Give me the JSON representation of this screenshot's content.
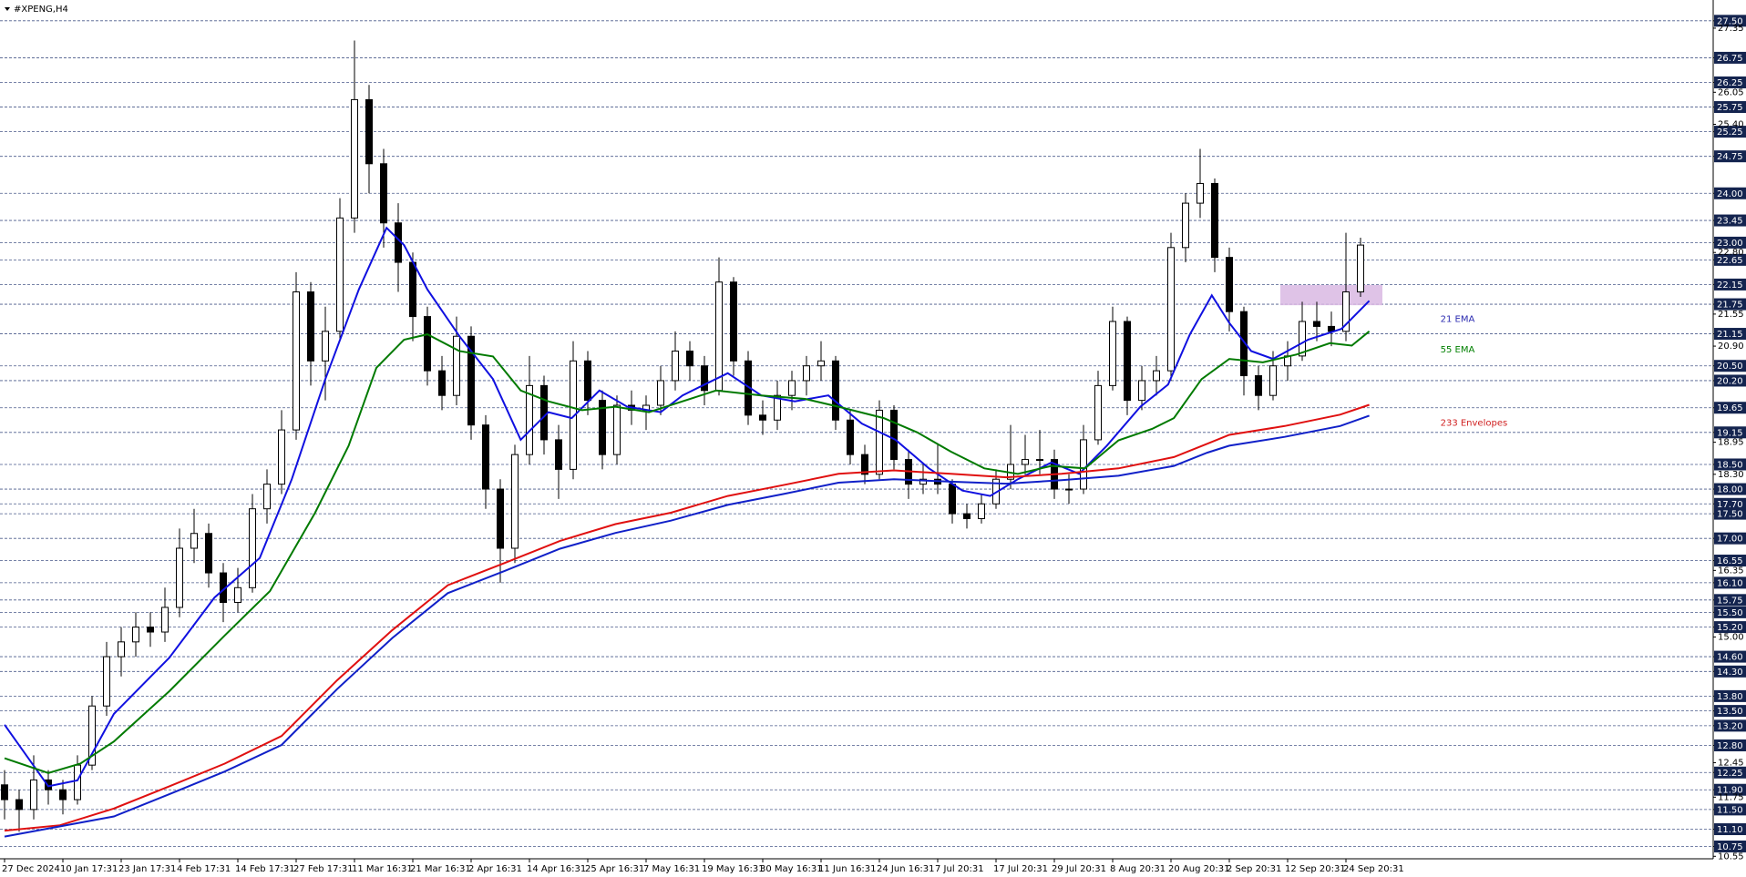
{
  "chart_data": {
    "type": "candlestick",
    "title": "#XPENG,H4",
    "categories": [
      "27 Dec 2024",
      null,
      null,
      null,
      "10 Jan 17:31",
      null,
      null,
      null,
      "23 Jan 17:31",
      null,
      null,
      null,
      "4 Feb 17:31",
      null,
      null,
      null,
      "14 Feb 17:31",
      null,
      null,
      null,
      "27 Feb 17:31",
      null,
      null,
      null,
      "11 Mar 16:31",
      null,
      null,
      null,
      "21 Mar 16:31",
      null,
      null,
      null,
      "2 Apr 16:31",
      null,
      null,
      null,
      "14 Apr 16:31",
      null,
      null,
      null,
      "25 Apr 16:31",
      null,
      null,
      null,
      "7 May 16:31",
      null,
      null,
      null,
      "19 May 16:31",
      null,
      null,
      null,
      "30 May 16:31",
      null,
      null,
      null,
      "11 Jun 16:31",
      null,
      null,
      null,
      "24 Jun 16:31",
      null,
      null,
      null,
      "7 Jul 20:31",
      null,
      null,
      null,
      "17 Jul 20:31",
      null,
      null,
      null,
      "29 Jul 20:31",
      null,
      null,
      null,
      "8 Aug 20:31",
      null,
      null,
      null,
      "20 Aug 20:31",
      null,
      null,
      null,
      "2 Sep 20:31",
      null,
      null,
      null,
      "12 Sep 20:31",
      null,
      null,
      null,
      "24 Sep 20:31",
      null
    ],
    "open": [
      12.0,
      11.7,
      11.5,
      12.1,
      11.9,
      11.7,
      12.4,
      13.6,
      14.6,
      14.9,
      15.2,
      15.1,
      15.6,
      16.8,
      17.1,
      16.3,
      15.7,
      16.0,
      17.6,
      18.1,
      19.2,
      22.0,
      20.6,
      21.2,
      23.5,
      25.9,
      24.6,
      23.4,
      22.6,
      21.5,
      20.4,
      19.9,
      21.1,
      19.3,
      18.0,
      16.8,
      18.7,
      20.1,
      19.0,
      18.4,
      20.6,
      19.8,
      18.7,
      19.7,
      19.6,
      19.7,
      20.2,
      20.8,
      20.5,
      20.0,
      22.2,
      20.6,
      19.5,
      19.4,
      19.9,
      20.2,
      20.5,
      20.6,
      19.4,
      18.7,
      18.3,
      19.6,
      18.6,
      18.1,
      18.2,
      18.1,
      17.5,
      17.4,
      17.7,
      18.2,
      18.5,
      18.6,
      18.6,
      18.0,
      18.0,
      19.0,
      20.1,
      21.4,
      19.8,
      20.2,
      20.4,
      22.9,
      23.8,
      24.2,
      22.7,
      21.6,
      20.3,
      19.9,
      20.5,
      20.7,
      21.4,
      21.3,
      21.2,
      22.0
    ],
    "high": [
      12.3,
      11.9,
      12.6,
      12.3,
      12.1,
      12.6,
      13.8,
      14.9,
      15.2,
      15.5,
      15.5,
      16.0,
      17.2,
      17.6,
      17.3,
      16.5,
      16.4,
      17.9,
      18.4,
      19.6,
      22.4,
      22.2,
      21.7,
      23.9,
      27.1,
      26.2,
      24.9,
      23.8,
      22.8,
      21.7,
      20.7,
      21.5,
      21.3,
      19.5,
      18.2,
      18.9,
      20.7,
      20.3,
      19.3,
      21.0,
      20.8,
      20.0,
      19.9,
      20.0,
      19.9,
      20.5,
      21.2,
      21.0,
      20.7,
      22.7,
      22.3,
      20.8,
      19.8,
      20.2,
      20.4,
      20.7,
      21.0,
      20.7,
      19.6,
      18.9,
      19.8,
      19.7,
      18.8,
      18.5,
      18.9,
      18.2,
      17.7,
      17.9,
      18.4,
      19.3,
      19.1,
      19.2,
      18.8,
      18.3,
      19.3,
      20.4,
      21.7,
      21.5,
      20.5,
      20.7,
      23.2,
      24.0,
      24.9,
      24.3,
      22.9,
      21.7,
      20.5,
      20.8,
      21.0,
      21.8,
      21.8,
      21.6,
      23.2,
      23.1
    ],
    "low": [
      11.3,
      11.05,
      11.3,
      11.6,
      11.4,
      11.6,
      12.3,
      13.4,
      14.2,
      14.6,
      14.8,
      14.9,
      15.4,
      16.5,
      16.0,
      15.3,
      15.5,
      15.9,
      17.3,
      17.9,
      19.0,
      20.1,
      19.8,
      21.0,
      23.2,
      24.0,
      22.9,
      22.0,
      21.0,
      20.1,
      19.6,
      19.7,
      19.0,
      17.6,
      16.1,
      16.5,
      18.5,
      18.7,
      17.8,
      18.2,
      19.5,
      18.4,
      18.5,
      19.3,
      19.2,
      19.5,
      20.0,
      20.2,
      19.7,
      19.9,
      20.3,
      19.3,
      19.1,
      19.2,
      19.6,
      19.9,
      20.2,
      19.2,
      18.5,
      18.1,
      18.2,
      18.4,
      17.8,
      17.9,
      17.9,
      17.3,
      17.2,
      17.3,
      17.6,
      18.0,
      18.3,
      18.3,
      17.8,
      17.7,
      17.9,
      18.9,
      20.0,
      19.5,
      19.6,
      19.9,
      20.2,
      22.6,
      23.5,
      22.4,
      21.2,
      19.9,
      19.6,
      19.8,
      20.2,
      20.6,
      21.0,
      20.9,
      21.0,
      21.9
    ],
    "close": [
      11.7,
      11.5,
      12.1,
      11.9,
      11.7,
      12.4,
      13.6,
      14.6,
      14.9,
      15.2,
      15.1,
      15.6,
      16.8,
      17.1,
      16.3,
      15.7,
      16.0,
      17.6,
      18.1,
      19.2,
      22.0,
      20.6,
      21.2,
      23.5,
      25.9,
      24.6,
      23.4,
      22.6,
      21.5,
      20.4,
      19.9,
      21.1,
      19.3,
      18.0,
      16.8,
      18.7,
      20.1,
      19.0,
      18.4,
      20.6,
      19.8,
      18.7,
      19.7,
      19.6,
      19.7,
      20.2,
      20.8,
      20.5,
      20.0,
      22.2,
      20.6,
      19.5,
      19.4,
      19.9,
      20.2,
      20.5,
      20.6,
      19.4,
      18.7,
      18.3,
      19.6,
      18.6,
      18.1,
      18.2,
      18.1,
      17.5,
      17.4,
      17.7,
      18.2,
      18.5,
      18.6,
      18.6,
      18.0,
      18.0,
      19.0,
      20.1,
      21.4,
      19.8,
      20.2,
      20.4,
      22.9,
      23.8,
      24.2,
      22.7,
      21.6,
      20.3,
      19.9,
      20.5,
      20.7,
      21.4,
      21.3,
      21.2,
      22.0,
      22.95
    ],
    "series": [
      {
        "label": "21 EMA",
        "color": "#1010e0",
        "label_color": "#2b2bb0",
        "x": [
          0,
          3,
          5,
          7.5,
          11.3,
          14.4,
          17.5,
          19.7,
          22,
          24.3,
          26.2,
          27.4,
          29,
          31.2,
          33.5,
          35.4,
          37.3,
          38.9,
          40.8,
          42.7,
          45,
          46.5,
          48,
          49.6,
          51.9,
          54.2,
          56.5,
          58.8,
          61.1,
          63.4,
          65.7,
          67.6,
          69.5,
          71.8,
          73.7,
          75.6,
          77.9,
          79.8,
          81.3,
          82.8,
          84,
          85.5,
          87,
          89.4,
          91.7,
          93.6
        ],
        "values": [
          13.22,
          11.97,
          12.09,
          13.44,
          14.58,
          15.8,
          16.6,
          18.2,
          20.23,
          22.05,
          23.3,
          22.95,
          22.05,
          21.1,
          20.23,
          19.0,
          19.56,
          19.44,
          20.0,
          19.67,
          19.56,
          19.9,
          20.12,
          20.35,
          19.9,
          19.78,
          19.9,
          19.33,
          19.0,
          18.42,
          17.97,
          17.86,
          18.2,
          18.54,
          18.31,
          18.88,
          19.67,
          20.12,
          21.14,
          21.93,
          21.37,
          20.8,
          20.64,
          21.03,
          21.25,
          21.82
        ]
      },
      {
        "label": "55 EMA",
        "color": "#007a00",
        "label_color": "#008000",
        "x": [
          0,
          3,
          5.2,
          7.5,
          11.3,
          15.1,
          18.2,
          21.3,
          23.6,
          25.5,
          27.4,
          29,
          31.2,
          33.5,
          35.4,
          37.3,
          39.6,
          41.9,
          44.2,
          46.5,
          48.8,
          51.9,
          54.9,
          57.2,
          60.3,
          62.6,
          64.9,
          67.2,
          69.5,
          71.8,
          74.1,
          76.4,
          78.7,
          80.2,
          82.1,
          84,
          86.3,
          88.6,
          90.9,
          92.4,
          93.6
        ],
        "values": [
          12.54,
          12.24,
          12.43,
          12.88,
          13.9,
          15.03,
          15.93,
          17.52,
          18.88,
          20.46,
          21.03,
          21.14,
          20.8,
          20.69,
          20.0,
          19.78,
          19.6,
          19.67,
          19.56,
          19.78,
          20.0,
          19.9,
          19.83,
          19.67,
          19.44,
          19.15,
          18.76,
          18.42,
          18.31,
          18.47,
          18.42,
          18.99,
          19.22,
          19.44,
          20.23,
          20.64,
          20.57,
          20.73,
          20.96,
          20.91,
          21.2
        ]
      },
      {
        "label": "233 Envelopes",
        "color": "#e01010",
        "label_color": "#d02020",
        "x": [
          0,
          3.8,
          7.5,
          11.3,
          15.1,
          19,
          22.8,
          26.6,
          30.4,
          34.3,
          38.1,
          41.9,
          45.7,
          49.6,
          53.4,
          57.2,
          61,
          64.9,
          68.7,
          72.5,
          76.4,
          80.2,
          82.5,
          84,
          87.8,
          91.6,
          93.6
        ],
        "values": [
          11.07,
          11.18,
          11.52,
          11.97,
          12.43,
          12.99,
          14.12,
          15.14,
          16.05,
          16.5,
          16.95,
          17.29,
          17.52,
          17.86,
          18.08,
          18.31,
          18.38,
          18.31,
          18.24,
          18.31,
          18.42,
          18.65,
          18.92,
          19.1,
          19.28,
          19.51,
          19.71
        ]
      },
      {
        "color": "#1020c8",
        "x": [
          0,
          7.5,
          11.3,
          15.1,
          19,
          22.8,
          26.6,
          30.4,
          34.3,
          38.1,
          41.9,
          45.7,
          49.6,
          53.4,
          57.2,
          61,
          64.9,
          68.7,
          72.5,
          76.4,
          80.2,
          82.5,
          84,
          87.8,
          91.6,
          93.6
        ],
        "values": [
          10.95,
          11.36,
          11.81,
          12.27,
          12.81,
          13.94,
          14.98,
          15.89,
          16.34,
          16.79,
          17.11,
          17.36,
          17.68,
          17.9,
          18.13,
          18.2,
          18.15,
          18.11,
          18.18,
          18.27,
          18.47,
          18.74,
          18.88,
          19.06,
          19.28,
          19.49
        ]
      }
    ],
    "zone": {
      "color": "#d9b8e3",
      "x": [
        87.5,
        94.5
      ],
      "y": [
        21.73,
        22.14
      ]
    },
    "up_color": "#ffffff",
    "down_color": "#000000",
    "outline_color": "#000000",
    "ylim": [
      10.5,
      27.7
    ],
    "yticks": [
      {
        "value": 27.5,
        "label": "27.50"
      },
      26.75,
      26.25,
      25.75,
      25.25,
      24.75,
      {
        "value": 24,
        "label": "24.00"
      },
      23.45,
      {
        "value": 23,
        "label": "23.00"
      },
      22.65,
      22.15,
      21.75,
      21.15,
      {
        "value": 20.5,
        "label": "20.50"
      },
      {
        "value": 20.2,
        "label": "20.20"
      },
      19.65,
      19.15,
      {
        "value": 18.5,
        "label": "18.50"
      },
      {
        "value": 18,
        "label": "18.00"
      },
      {
        "value": 17.7,
        "label": "17.70"
      },
      {
        "value": 17.5,
        "label": "17.50"
      },
      {
        "value": 17,
        "label": "17.00"
      },
      16.55,
      {
        "value": 16.1,
        "label": "16.10"
      },
      15.75,
      {
        "value": 15.5,
        "label": "15.50"
      },
      {
        "value": 15.2,
        "label": "15.20"
      },
      {
        "value": 14.6,
        "label": "14.60"
      },
      {
        "value": 14.3,
        "label": "14.30"
      },
      {
        "value": 13.8,
        "label": "13.80"
      },
      {
        "value": 13.5,
        "label": "13.50"
      },
      {
        "value": 13.2,
        "label": "13.20"
      },
      {
        "value": 12.8,
        "label": "12.80"
      },
      12.25,
      {
        "value": 11.9,
        "label": "11.90"
      },
      {
        "value": 11.5,
        "label": "11.50"
      },
      {
        "value": 11.1,
        "label": "11.10"
      },
      10.75
    ],
    "yticks_plain": [
      27.35,
      26.05,
      {
        "value": 25.4,
        "label": "25.40"
      },
      {
        "value": 22.8,
        "label": "22.80"
      },
      21.55,
      {
        "value": 20.9,
        "label": "20.90"
      },
      18.95,
      {
        "value": 18.3,
        "label": "18.30"
      },
      16.35,
      {
        "value": 15,
        "label": "15.00"
      },
      12.45,
      11.75,
      10.55
    ],
    "grid": true
  }
}
